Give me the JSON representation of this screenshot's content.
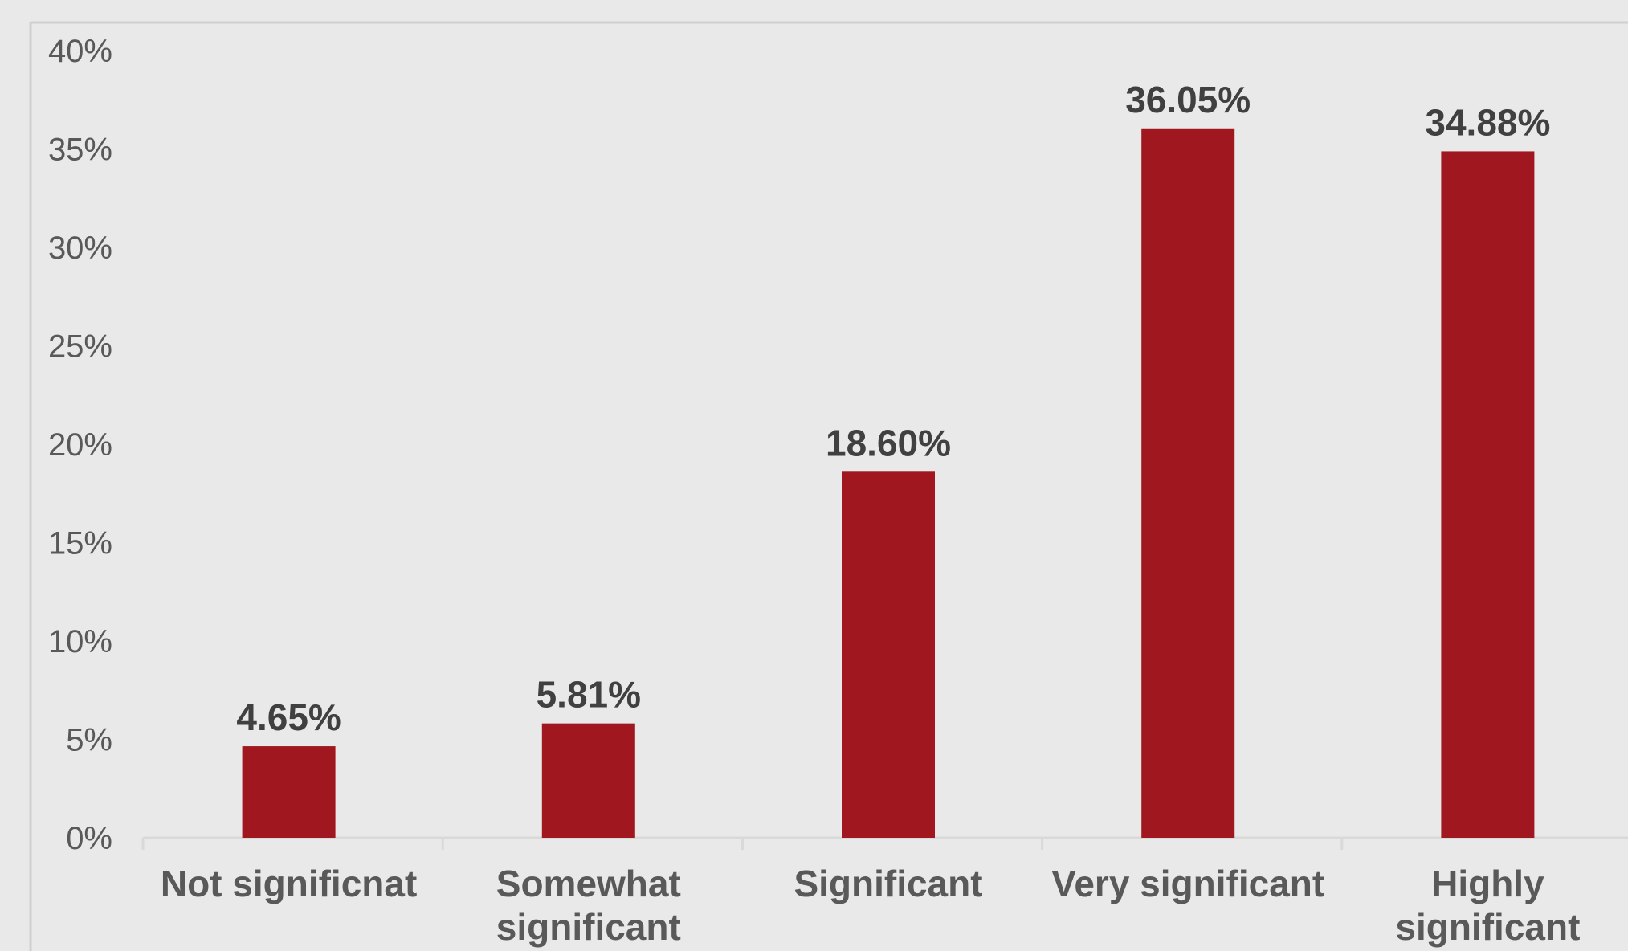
{
  "chart_data": {
    "type": "bar",
    "title": "",
    "xlabel": "",
    "ylabel": "",
    "categories": [
      [
        "Not significnat"
      ],
      [
        "Somewhat",
        "significant"
      ],
      [
        "Significant"
      ],
      [
        "Very significant"
      ],
      [
        "Highly",
        "significant"
      ]
    ],
    "values": [
      4.65,
      5.81,
      18.6,
      36.05,
      34.88
    ],
    "data_labels": [
      "4.65%",
      "5.81%",
      "18.60%",
      "36.05%",
      "34.88%"
    ],
    "ylim": [
      0,
      40
    ],
    "yticks": [
      0,
      5,
      10,
      15,
      20,
      25,
      30,
      35,
      40
    ],
    "ytick_labels": [
      "0%",
      "5%",
      "10%",
      "15%",
      "20%",
      "25%",
      "30%",
      "35%",
      "40%"
    ],
    "grid": false,
    "legend": "none",
    "colors": {
      "bar": "#a0171f",
      "background": "#e9e9e9",
      "axis": "#d9d9d9",
      "frame": "#d0d0d0"
    }
  }
}
